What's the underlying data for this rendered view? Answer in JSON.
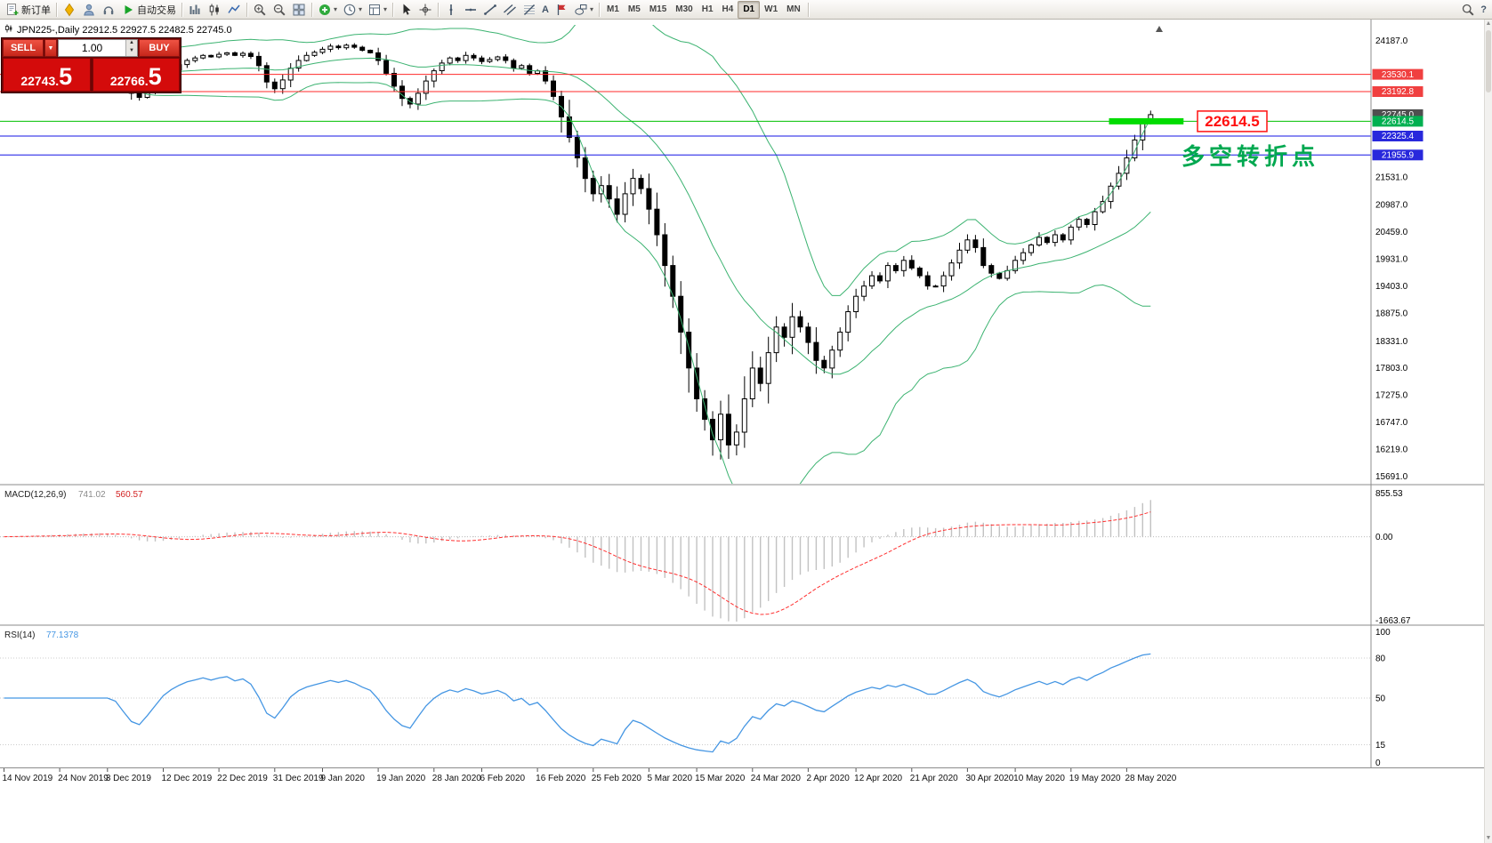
{
  "toolbar": {
    "groups": [
      [
        {
          "name": "new-order-button",
          "icon": "new-order",
          "label": "新订单"
        }
      ],
      [
        {
          "name": "mql5-icon",
          "icon": "diamond"
        },
        {
          "name": "profile-icon",
          "icon": "profile"
        },
        {
          "name": "support-icon",
          "icon": "headset"
        },
        {
          "name": "autotrading-button",
          "icon": "play",
          "label": "自动交易"
        }
      ],
      [
        {
          "name": "bar-chart-button",
          "icon": "bars"
        },
        {
          "name": "candlestick-chart-button",
          "icon": "candles"
        },
        {
          "name": "line-chart-button",
          "icon": "line"
        }
      ],
      [
        {
          "name": "zoom-in-button",
          "icon": "zoom-in"
        },
        {
          "name": "zoom-out-button",
          "icon": "zoom-out"
        },
        {
          "name": "tile-windows-button",
          "icon": "tile"
        }
      ],
      [
        {
          "name": "indicators-button",
          "icon": "indicator",
          "dropdown": true
        },
        {
          "name": "periods-button",
          "icon": "clock",
          "dropdown": true
        },
        {
          "name": "templates-button",
          "icon": "template",
          "dropdown": true
        }
      ],
      [
        {
          "name": "cursor-button",
          "icon": "cursor"
        },
        {
          "name": "crosshair-button",
          "icon": "crosshair"
        }
      ],
      [
        {
          "name": "vertical-line-button",
          "icon": "vline"
        },
        {
          "name": "horizontal-line-button",
          "icon": "hline"
        },
        {
          "name": "trendline-button",
          "icon": "trendline"
        },
        {
          "name": "channel-button",
          "icon": "channel"
        },
        {
          "name": "fibonacci-button",
          "icon": "fibo"
        },
        {
          "name": "text-button",
          "glyph": "A"
        },
        {
          "name": "label-button",
          "icon": "flag"
        },
        {
          "name": "shapes-button",
          "icon": "shapes",
          "dropdown": true
        }
      ],
      "TIMEFRAMES",
      [
        {
          "name": "search-button",
          "icon": "magnifier"
        },
        {
          "name": "help-button",
          "glyph": "?"
        }
      ]
    ],
    "timeframes": [
      "M1",
      "M5",
      "M15",
      "M30",
      "H1",
      "H4",
      "D1",
      "W1",
      "MN"
    ],
    "active_timeframe": "D1"
  },
  "chart": {
    "title": "JPN225-,Daily 22912.5 22927.5 22482.5 22745.0",
    "symbol": "JPN225-",
    "period": "Daily",
    "ohlc": {
      "open": "22912.5",
      "high": "22927.5",
      "low": "22482.5",
      "close": "22745.0"
    }
  },
  "trade_panel": {
    "sell_label": "SELL",
    "buy_label": "BUY",
    "lot_size": "1.00",
    "sell_price": "22743.5",
    "sell_price_main": "22743.",
    "sell_price_big": "5",
    "buy_price": "22766.5",
    "buy_price_main": "22766.",
    "buy_price_big": "5"
  },
  "levels": [
    {
      "label": "23530.1",
      "value": 23530.1,
      "color": "#ff2a2a",
      "badge": "#f04040"
    },
    {
      "label": "23192.8",
      "value": 23192.8,
      "color": "#ff2a2a",
      "badge": "#f04040"
    },
    {
      "label": "22614.5",
      "value": 22614.5,
      "color": "#00c000",
      "badge": "#00b050"
    },
    {
      "label": "22325.4",
      "value": 22325.4,
      "color": "#1414e6",
      "badge": "#2828dc"
    },
    {
      "label": "21955.9",
      "value": 21955.9,
      "color": "#1414e6",
      "badge": "#2828dc"
    }
  ],
  "current_price": {
    "label": "22745.0",
    "value": 22745.0,
    "badge": "#4f4f4f"
  },
  "annotations": {
    "price_tag": {
      "text": "22614.5",
      "color": "#ff1010",
      "price": 22614.5
    },
    "turning_point": {
      "text": "多空转折点",
      "color": "#00a850"
    },
    "highlight_band": {
      "price": 22614.5,
      "color": "#00dc00"
    }
  },
  "chart_data": {
    "type": "candlestick",
    "title": "JPN225-,Daily",
    "first_open": 23500,
    "closes": [
      23560,
      23610,
      23650,
      23620,
      23700,
      23680,
      23740,
      23790,
      23760,
      23820,
      23850,
      23800,
      23840,
      23700,
      23520,
      23360,
      23160,
      23080,
      23190,
      23330,
      23500,
      23620,
      23720,
      23800,
      23850,
      23900,
      23870,
      23920,
      23950,
      23900,
      23940,
      23880,
      23700,
      23380,
      23250,
      23420,
      23650,
      23800,
      23900,
      23960,
      24020,
      24080,
      24050,
      24100,
      24060,
      24000,
      23950,
      23800,
      23550,
      23300,
      23060,
      22950,
      23160,
      23400,
      23600,
      23750,
      23850,
      23800,
      23900,
      23850,
      23780,
      23820,
      23870,
      23800,
      23650,
      23700,
      23550,
      23600,
      23400,
      23100,
      22700,
      22300,
      21900,
      21500,
      21200,
      21360,
      21100,
      20800,
      21200,
      21500,
      21300,
      20900,
      20400,
      19800,
      19200,
      18500,
      17800,
      17200,
      16800,
      16400,
      16900,
      16300,
      16550,
      17200,
      17800,
      17500,
      18100,
      18600,
      18400,
      18800,
      18600,
      18300,
      17950,
      17800,
      18150,
      18500,
      18900,
      19200,
      19400,
      19600,
      19500,
      19800,
      19700,
      19900,
      19750,
      19600,
      19400,
      19400,
      19600,
      19850,
      20100,
      20300,
      20150,
      19800,
      19650,
      19550,
      19700,
      19900,
      20050,
      20200,
      20350,
      20250,
      20400,
      20300,
      20550,
      20700,
      20600,
      20850,
      21050,
      21350,
      21600,
      21900,
      22250,
      22600,
      22745
    ],
    "y_ticks": [
      {
        "label": "24187.0",
        "value": 24187.0
      },
      {
        "label": "21531.0",
        "value": 21531.0
      },
      {
        "label": "20987.0",
        "value": 20987.0
      },
      {
        "label": "20459.0",
        "value": 20459.0
      },
      {
        "label": "19931.0",
        "value": 19931.0
      },
      {
        "label": "19403.0",
        "value": 19403.0
      },
      {
        "label": "18875.0",
        "value": 18875.0
      },
      {
        "label": "18331.0",
        "value": 18331.0
      },
      {
        "label": "17803.0",
        "value": 17803.0
      },
      {
        "label": "17275.0",
        "value": 17275.0
      },
      {
        "label": "16747.0",
        "value": 16747.0
      },
      {
        "label": "16219.0",
        "value": 16219.0
      },
      {
        "label": "15691.0",
        "value": 15691.0
      }
    ],
    "x_labels": [
      {
        "text": "14 Nov 2019",
        "bar": 0
      },
      {
        "text": "24 Nov 2019",
        "bar": 7
      },
      {
        "text": "3 Dec 2019",
        "bar": 13
      },
      {
        "text": "12 Dec 2019",
        "bar": 20
      },
      {
        "text": "22 Dec 2019",
        "bar": 27
      },
      {
        "text": "31 Dec 2019",
        "bar": 34
      },
      {
        "text": "9 Jan 2020",
        "bar": 40
      },
      {
        "text": "19 Jan 2020",
        "bar": 47
      },
      {
        "text": "28 Jan 2020",
        "bar": 54
      },
      {
        "text": "6 Feb 2020",
        "bar": 60
      },
      {
        "text": "16 Feb 2020",
        "bar": 67
      },
      {
        "text": "25 Feb 2020",
        "bar": 74
      },
      {
        "text": "5 Mar 2020",
        "bar": 81
      },
      {
        "text": "15 Mar 2020",
        "bar": 87
      },
      {
        "text": "24 Mar 2020",
        "bar": 94
      },
      {
        "text": "2 Apr 2020",
        "bar": 101
      },
      {
        "text": "12 Apr 2020",
        "bar": 107
      },
      {
        "text": "21 Apr 2020",
        "bar": 114
      },
      {
        "text": "30 Apr 2020",
        "bar": 121
      },
      {
        "text": "10 May 2020",
        "bar": 127
      },
      {
        "text": "19 May 2020",
        "bar": 134
      },
      {
        "text": "28 May 2020",
        "bar": 141
      }
    ],
    "indicators": {
      "bollinger": {
        "period": 20,
        "deviation": 2,
        "color": "#3cb371"
      },
      "macd": {
        "label": "MACD(12,26,9)",
        "value_main": "741.02",
        "value_signal": "560.57",
        "scale": [
          {
            "label": "855.53",
            "value": 855.53
          },
          {
            "label": "0.00",
            "value": 0
          },
          {
            "label": "-1663.67",
            "value": -1663.67
          }
        ],
        "histogram_color": "#c2c2c2",
        "signal_color": "#ff3030"
      },
      "rsi": {
        "label": "RSI(14)",
        "value": "77.1378",
        "levels": [
          80,
          50,
          15
        ],
        "scale": [
          {
            "label": "100",
            "value": 100
          },
          {
            "label": "80",
            "value": 80
          },
          {
            "label": "50",
            "value": 50
          },
          {
            "label": "15",
            "value": 15
          },
          {
            "label": "0",
            "value": 0
          }
        ],
        "line_color": "#4596e3"
      }
    }
  }
}
